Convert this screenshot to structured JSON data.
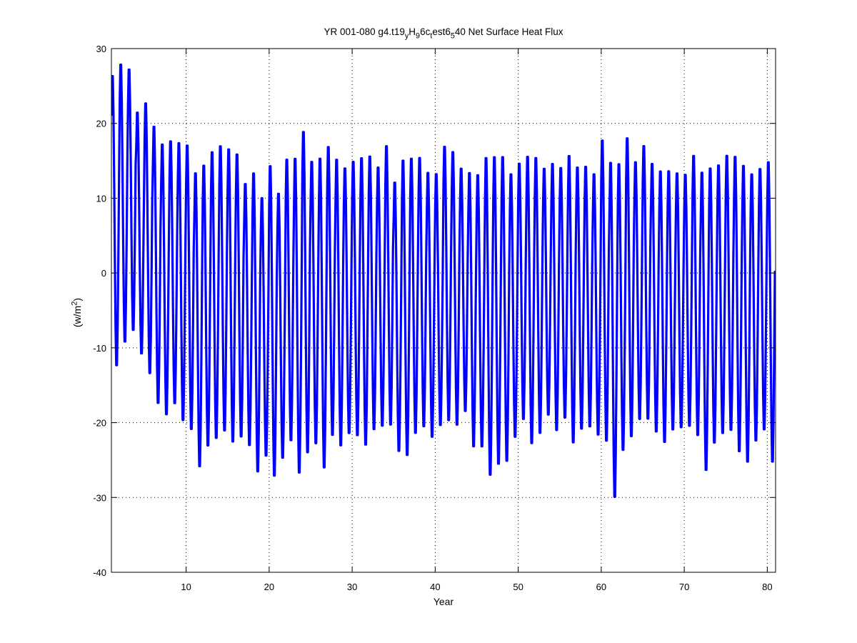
{
  "chart_data": {
    "type": "line",
    "title_parts": [
      {
        "text": "YR 001-080 g4.t19",
        "shift": "none"
      },
      {
        "text": "y",
        "shift": "sub"
      },
      {
        "text": "H",
        "shift": "none"
      },
      {
        "text": "9",
        "shift": "sub"
      },
      {
        "text": "6c",
        "shift": "none"
      },
      {
        "text": "t",
        "shift": "sub"
      },
      {
        "text": "est6",
        "shift": "none"
      },
      {
        "text": "5",
        "shift": "sub"
      },
      {
        "text": "40 Net Surface Heat Flux",
        "shift": "none"
      }
    ],
    "xlabel": "Year",
    "ylabel_parts": [
      {
        "text": "(w/m",
        "shift": "none"
      },
      {
        "text": "2",
        "shift": "super"
      },
      {
        "text": ")",
        "shift": "none"
      }
    ],
    "xlim": [
      1,
      81
    ],
    "ylim": [
      -40,
      30
    ],
    "xticks": [
      10,
      20,
      30,
      40,
      50,
      60,
      70,
      80
    ],
    "xtick_labels": [
      "10",
      "20",
      "30",
      "40",
      "50",
      "60",
      "70",
      "80"
    ],
    "yticks": [
      -40,
      -30,
      -20,
      -10,
      0,
      10,
      20,
      30
    ],
    "ytick_labels": [
      "-40",
      "-30",
      "-20",
      "-10",
      "0",
      "10",
      "20",
      "30"
    ],
    "grid": true,
    "series": [
      {
        "color": "#0000ff",
        "sampling": "monthly",
        "x_start": 1.0,
        "year_peaks": [
          27.0,
          28.5,
          27.8,
          22.0,
          23.3,
          20.2,
          17.8,
          18.2,
          18.0,
          17.7,
          14.0,
          15.0,
          16.8,
          17.6,
          17.2,
          16.5,
          12.5,
          14.0,
          10.6,
          15.0,
          11.2,
          15.8,
          16.0,
          19.6,
          15.5,
          16.0,
          17.5,
          15.8,
          14.6,
          15.5,
          16.0,
          16.2,
          14.7,
          17.6,
          12.7,
          15.7,
          15.9,
          16.0,
          14.0,
          13.8,
          17.5,
          16.8,
          14.5,
          14.0,
          13.7,
          16.1,
          16.2,
          16.2,
          13.8,
          15.2,
          16.2,
          16.0,
          14.5,
          15.2,
          14.6,
          16.3,
          14.7,
          14.8,
          13.8,
          18.4,
          15.5,
          15.2,
          18.7,
          15.4,
          17.6,
          15.2,
          14.2,
          14.2,
          13.9,
          13.7,
          16.3,
          14.1,
          14.6,
          15.0,
          16.3,
          16.2,
          15.0,
          13.8,
          14.5,
          15.5
        ],
        "year_troughs": [
          -13.0,
          -9.8,
          -8.2,
          -11.3,
          -14.0,
          -18.0,
          -19.5,
          -18.0,
          -20.3,
          -21.5,
          -26.5,
          -23.7,
          -22.7,
          -21.7,
          -23.2,
          -22.5,
          -23.6,
          -27.2,
          -25.0,
          -27.8,
          -25.3,
          -23.0,
          -27.4,
          -24.7,
          -23.4,
          -26.7,
          -22.3,
          -23.7,
          -22.0,
          -22.3,
          -23.6,
          -21.5,
          -21.0,
          -20.9,
          -24.4,
          -25.0,
          -22.0,
          -21.1,
          -22.5,
          -20.9,
          -20.3,
          -20.9,
          -19.0,
          -23.8,
          -23.8,
          -27.7,
          -26.2,
          -25.8,
          -22.5,
          -20.1,
          -23.4,
          -22.0,
          -19.5,
          -21.6,
          -19.9,
          -23.3,
          -21.4,
          -21.1,
          -22.2,
          -23.1,
          -30.7,
          -24.3,
          -22.5,
          -20.1,
          -20.1,
          -21.8,
          -23.2,
          -21.5,
          -21.2,
          -21.0,
          -22.3,
          -27.0,
          -23.3,
          -22.0,
          -21.6,
          -24.5,
          -25.9,
          -23.0,
          -21.5,
          -25.9
        ]
      }
    ]
  }
}
